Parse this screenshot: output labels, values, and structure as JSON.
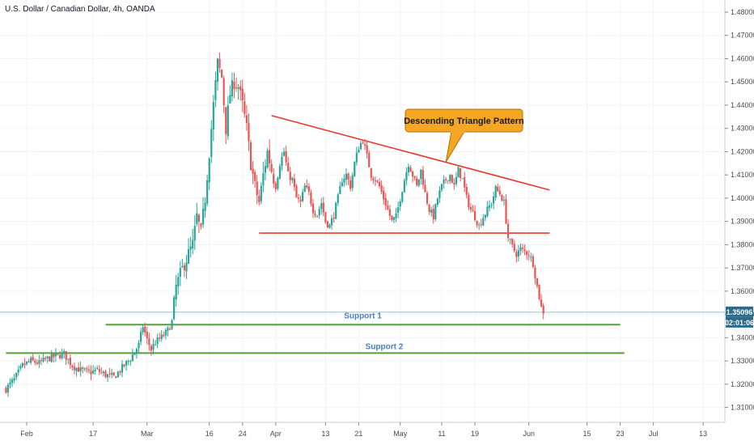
{
  "chart_data": {
    "type": "candlestick",
    "title": "U.S. Dollar / Canadian Dollar, 4h, OANDA",
    "y_ticks": [
      1.31,
      1.32,
      1.33,
      1.34,
      1.35,
      1.36,
      1.37,
      1.38,
      1.39,
      1.4,
      1.41,
      1.42,
      1.43,
      1.44,
      1.45,
      1.46,
      1.47,
      1.48
    ],
    "y_tick_labels": [
      "1.31000",
      "1.32000",
      "1.33000",
      "1.34000",
      "1.35000",
      "1.36000",
      "1.37000",
      "1.38000",
      "1.39000",
      "1.40000",
      "1.41000",
      "1.42000",
      "1.43000",
      "1.44000",
      "1.45000",
      "1.46000",
      "1.47000",
      "1.48000"
    ],
    "ylim": [
      1.302,
      1.485
    ],
    "x_ticks": [
      {
        "label": "Feb",
        "day": 0
      },
      {
        "label": "17",
        "day": 16
      },
      {
        "label": "Mar",
        "day": 29
      },
      {
        "label": "16",
        "day": 44
      },
      {
        "label": "24",
        "day": 52
      },
      {
        "label": "Apr",
        "day": 60
      },
      {
        "label": "13",
        "day": 72
      },
      {
        "label": "21",
        "day": 80
      },
      {
        "label": "May",
        "day": 90
      },
      {
        "label": "11",
        "day": 100
      },
      {
        "label": "19",
        "day": 108
      },
      {
        "label": "Jun",
        "day": 121
      },
      {
        "label": "15",
        "day": 135
      },
      {
        "label": "23",
        "day": 143
      },
      {
        "label": "Jul",
        "day": 151
      },
      {
        "label": "13",
        "day": 163
      }
    ],
    "close_path": [
      [
        -5,
        1.318
      ],
      [
        -3,
        1.322
      ],
      [
        -1,
        1.328
      ],
      [
        1,
        1.33
      ],
      [
        3,
        1.329
      ],
      [
        5,
        1.331
      ],
      [
        7,
        1.332
      ],
      [
        9,
        1.333
      ],
      [
        11,
        1.328
      ],
      [
        13,
        1.326
      ],
      [
        15,
        1.325
      ],
      [
        17,
        1.326
      ],
      [
        19,
        1.324
      ],
      [
        21,
        1.323
      ],
      [
        23,
        1.327
      ],
      [
        25,
        1.331
      ],
      [
        27,
        1.337
      ],
      [
        28,
        1.345
      ],
      [
        29,
        1.339
      ],
      [
        30,
        1.335
      ],
      [
        31,
        1.338
      ],
      [
        33,
        1.341
      ],
      [
        34,
        1.343
      ],
      [
        35,
        1.347
      ],
      [
        36,
        1.362
      ],
      [
        37,
        1.367
      ],
      [
        38,
        1.372
      ],
      [
        39,
        1.376
      ],
      [
        40,
        1.38
      ],
      [
        41,
        1.392
      ],
      [
        42,
        1.385
      ],
      [
        43,
        1.4
      ],
      [
        44,
        1.42
      ],
      [
        45,
        1.44
      ],
      [
        46,
        1.458
      ],
      [
        47,
        1.452
      ],
      [
        48,
        1.43
      ],
      [
        49,
        1.445
      ],
      [
        50,
        1.45
      ],
      [
        51,
        1.448
      ],
      [
        52,
        1.44
      ],
      [
        53,
        1.43
      ],
      [
        54,
        1.415
      ],
      [
        55,
        1.405
      ],
      [
        56,
        1.398
      ],
      [
        57,
        1.41
      ],
      [
        58,
        1.42
      ],
      [
        59,
        1.412
      ],
      [
        60,
        1.405
      ],
      [
        61,
        1.415
      ],
      [
        62,
        1.42
      ],
      [
        63,
        1.41
      ],
      [
        64,
        1.408
      ],
      [
        65,
        1.4
      ],
      [
        66,
        1.398
      ],
      [
        67,
        1.405
      ],
      [
        68,
        1.402
      ],
      [
        69,
        1.395
      ],
      [
        70,
        1.393
      ],
      [
        71,
        1.398
      ],
      [
        72,
        1.39
      ],
      [
        73,
        1.388
      ],
      [
        74,
        1.393
      ],
      [
        75,
        1.4
      ],
      [
        76,
        1.408
      ],
      [
        77,
        1.41
      ],
      [
        78,
        1.405
      ],
      [
        79,
        1.415
      ],
      [
        80,
        1.422
      ],
      [
        81,
        1.425
      ],
      [
        82,
        1.418
      ],
      [
        83,
        1.41
      ],
      [
        84,
        1.408
      ],
      [
        85,
        1.405
      ],
      [
        86,
        1.4
      ],
      [
        87,
        1.395
      ],
      [
        88,
        1.39
      ],
      [
        89,
        1.392
      ],
      [
        90,
        1.4
      ],
      [
        91,
        1.408
      ],
      [
        92,
        1.415
      ],
      [
        93,
        1.41
      ],
      [
        94,
        1.405
      ],
      [
        95,
        1.412
      ],
      [
        96,
        1.402
      ],
      [
        97,
        1.395
      ],
      [
        98,
        1.392
      ],
      [
        99,
        1.4
      ],
      [
        100,
        1.405
      ],
      [
        101,
        1.408
      ],
      [
        102,
        1.41
      ],
      [
        103,
        1.405
      ],
      [
        104,
        1.412
      ],
      [
        105,
        1.408
      ],
      [
        106,
        1.4
      ],
      [
        107,
        1.395
      ],
      [
        108,
        1.392
      ],
      [
        109,
        1.388
      ],
      [
        110,
        1.392
      ],
      [
        111,
        1.395
      ],
      [
        112,
        1.398
      ],
      [
        113,
        1.404
      ],
      [
        114,
        1.402
      ],
      [
        115,
        1.398
      ],
      [
        116,
        1.383
      ],
      [
        117,
        1.379
      ],
      [
        118,
        1.376
      ],
      [
        119,
        1.378
      ],
      [
        120,
        1.377
      ],
      [
        121,
        1.376
      ],
      [
        122,
        1.372
      ],
      [
        123,
        1.362
      ],
      [
        124,
        1.353
      ],
      [
        124.6,
        1.35096
      ]
    ],
    "annotations": {
      "triangle_upper": {
        "from": [
          59,
          1.4355
        ],
        "to": [
          126,
          1.4035
        ],
        "color": "#e53935"
      },
      "triangle_lower": {
        "from": [
          56,
          1.385
        ],
        "to": [
          126,
          1.385
        ],
        "color": "#e53935"
      },
      "support_1": {
        "label": "Support 1",
        "from": [
          19,
          1.3456
        ],
        "to": [
          143,
          1.3456
        ],
        "color": "#5a9e3a"
      },
      "support_2": {
        "label": "Support 2",
        "from": [
          -5,
          1.3334
        ],
        "to": [
          144,
          1.3334
        ],
        "color": "#5a9e3a"
      },
      "current_price_line": {
        "value": 1.35096,
        "color": "#90c4d2"
      },
      "callout": {
        "text": "Descending Triangle Pattern",
        "point_to": [
          101,
          1.4155
        ],
        "bg": "#f5a623",
        "border": "#b86e00"
      }
    },
    "price_tag": {
      "value": "1.35096",
      "bg": "#2a6a8a"
    },
    "countdown_tag": {
      "value": "02:01:06",
      "bg": "#2a6a8a"
    },
    "colors": {
      "up": "#26a69a",
      "down": "#ef5350",
      "grid": "#f0f3fa",
      "axis": "#4a4a4a"
    }
  }
}
